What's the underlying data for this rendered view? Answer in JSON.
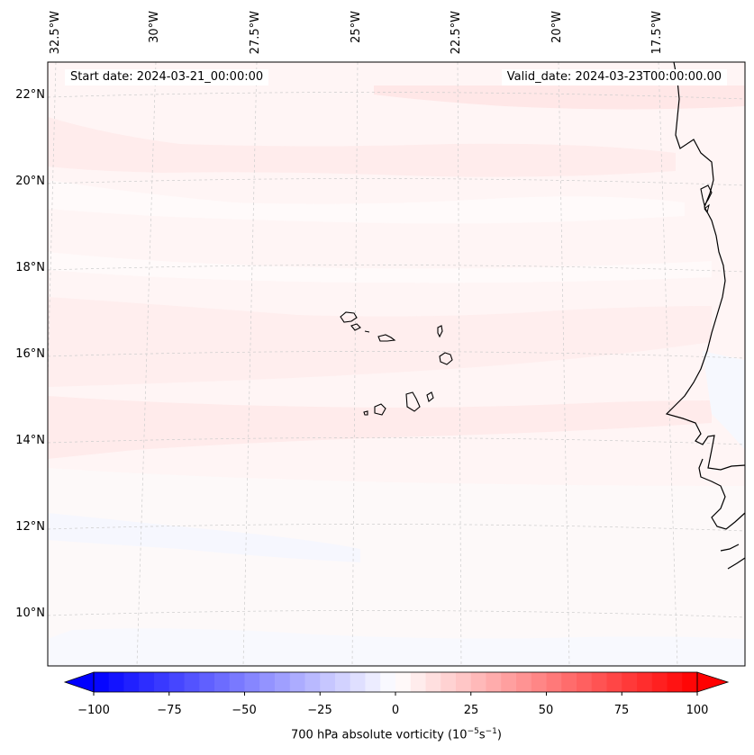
{
  "header": {
    "start_date": "Start date: 2024-03-21_00:00:00",
    "valid_date": "Valid_date: 2024-03-23T00:00:00.00"
  },
  "map": {
    "variable": "700 hPa absolute vorticity",
    "lat_labels": [
      "22°N",
      "20°N",
      "18°N",
      "16°N",
      "14°N",
      "12°N",
      "10°N"
    ],
    "lon_labels": [
      "32.5°W",
      "30°W",
      "27.5°W",
      "25°W",
      "22.5°W",
      "20°W",
      "17.5°W"
    ],
    "features": [
      "Cabo Verde islands",
      "West African coastline"
    ],
    "colors": {
      "background_field": "#fff5f5",
      "positive_light": "#ffe9e9",
      "near_zero": "#fdfbfb",
      "negative_light": "#f7f8fe",
      "coastline": "#000000",
      "gridline": "#cccccc"
    }
  },
  "colorbar": {
    "ticks": [
      "−100",
      "−75",
      "−50",
      "−25",
      "0",
      "25",
      "50",
      "75",
      "100"
    ],
    "label_main": "700 hPa absolute vorticity (10",
    "label_exp1": "−5",
    "label_mid": "s",
    "label_exp2": "−1",
    "label_end": ")",
    "min_color": "#0000ff",
    "zero_color": "#ffffff",
    "max_color": "#ff0000",
    "levels": [
      -100,
      -95,
      -90,
      -85,
      -80,
      -75,
      -70,
      -65,
      -60,
      -55,
      -50,
      -45,
      -40,
      -35,
      -30,
      -25,
      -20,
      -15,
      -10,
      -5,
      0,
      5,
      10,
      15,
      20,
      25,
      30,
      35,
      40,
      45,
      50,
      55,
      60,
      65,
      70,
      75,
      80,
      85,
      90,
      95,
      100
    ]
  }
}
